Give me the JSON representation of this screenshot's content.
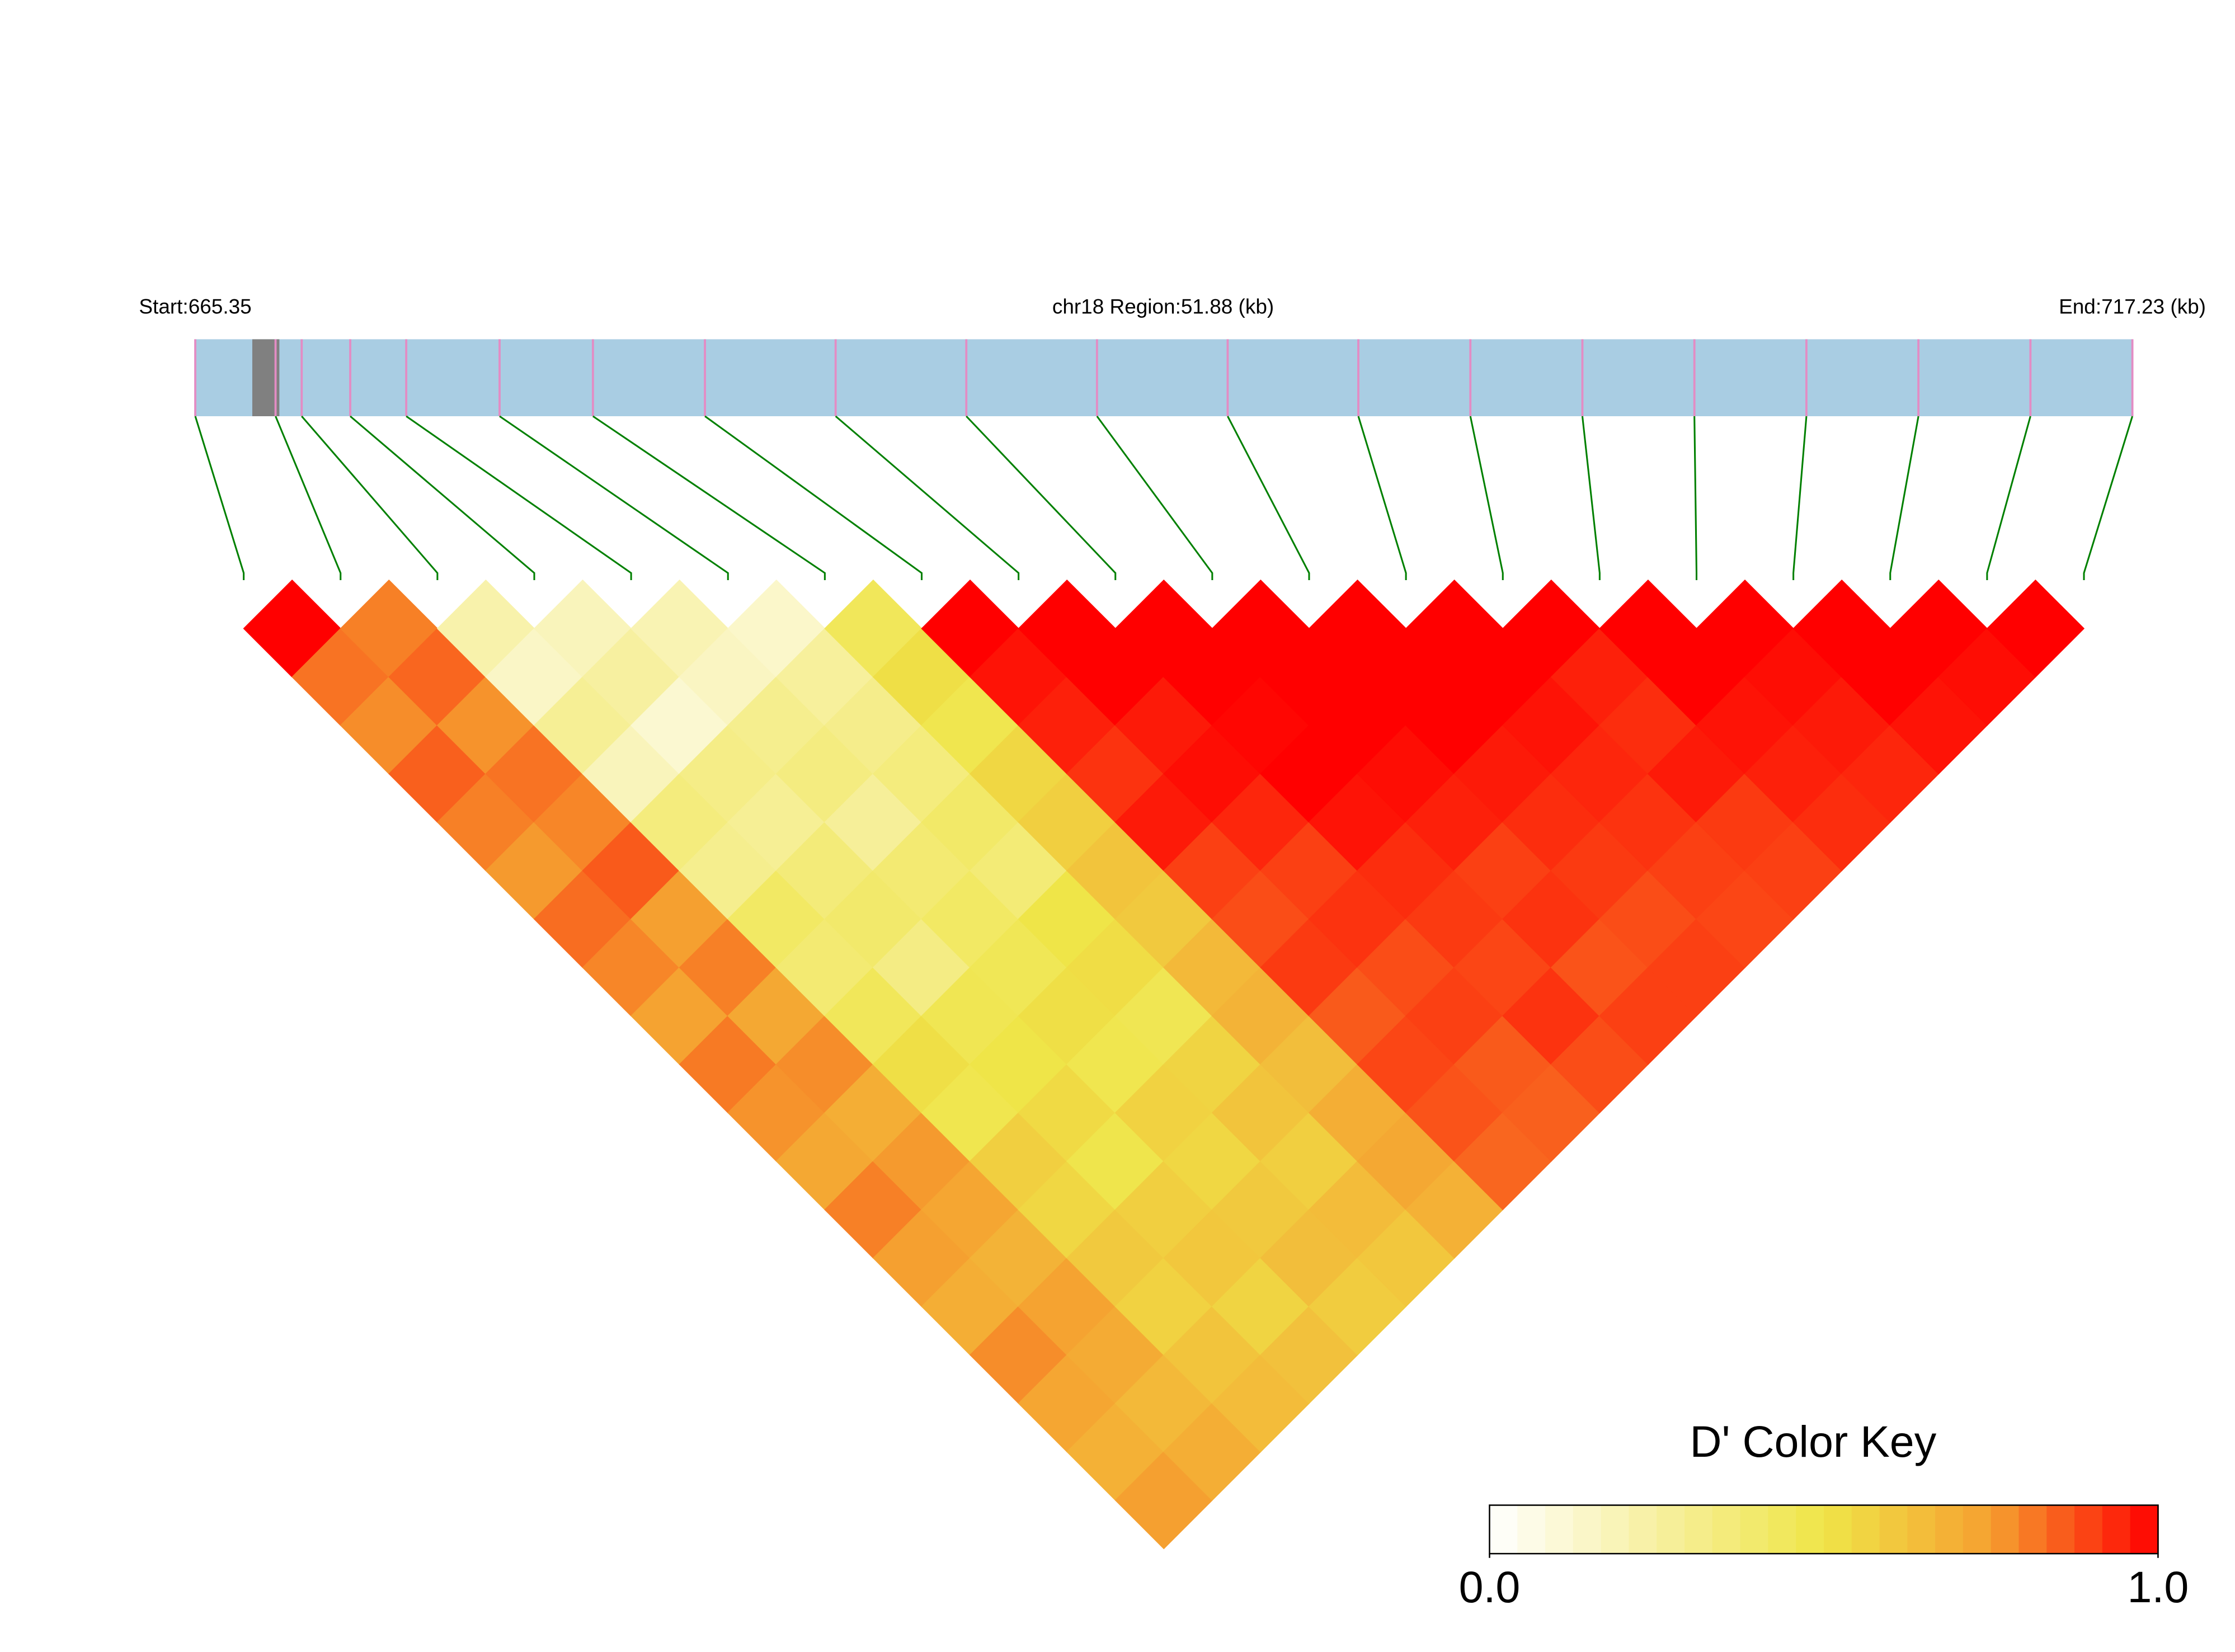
{
  "chart_data": {
    "type": "ld_heatmap",
    "start_label": "Start:665.35",
    "title": "chr18 Region:51.88 (kb)",
    "end_label": "End:717.23 (kb)",
    "xlim": [
      665.35,
      717.23
    ],
    "positions": [
      665.35,
      667.5,
      668.2,
      669.5,
      671.0,
      673.5,
      676.0,
      679.0,
      682.5,
      686.0,
      689.5,
      693.0,
      696.5,
      699.5,
      702.5,
      705.5,
      708.5,
      711.5,
      714.5,
      717.23
    ],
    "track_color": "#a9cde3",
    "snp_color": "#e38cc4",
    "link_color": "#008000",
    "dprime": [
      [
        1.0,
        0.82,
        0.78,
        0.85,
        0.8,
        0.76,
        0.83,
        0.79,
        0.74,
        0.81,
        0.77,
        0.72,
        0.8,
        0.75,
        0.7,
        0.78,
        0.73,
        0.69,
        0.75
      ],
      [
        0.8,
        0.84,
        0.77,
        0.82,
        0.79,
        0.86,
        0.75,
        0.8,
        0.72,
        0.78,
        0.7,
        0.76,
        0.73,
        0.68,
        0.74,
        0.71,
        0.66,
        0.7
      ],
      [
        0.22,
        0.15,
        0.28,
        0.18,
        0.35,
        0.3,
        0.42,
        0.38,
        0.45,
        0.52,
        0.48,
        0.58,
        0.55,
        0.6,
        0.57,
        0.62,
        0.65
      ],
      [
        0.18,
        0.25,
        0.12,
        0.32,
        0.28,
        0.36,
        0.4,
        0.33,
        0.47,
        0.5,
        0.54,
        0.49,
        0.58,
        0.61,
        0.56,
        0.63
      ],
      [
        0.2,
        0.16,
        0.3,
        0.34,
        0.27,
        0.38,
        0.42,
        0.46,
        0.52,
        0.48,
        0.57,
        0.55,
        0.6,
        0.64,
        0.59
      ],
      [
        0.14,
        0.26,
        0.31,
        0.35,
        0.41,
        0.37,
        0.5,
        0.53,
        0.47,
        0.56,
        0.62,
        0.58,
        0.65,
        0.61
      ],
      [
        0.45,
        0.52,
        0.48,
        0.55,
        0.58,
        0.62,
        0.6,
        0.66,
        0.68,
        0.64,
        0.7,
        0.72,
        0.69
      ],
      [
        1.0,
        0.97,
        0.95,
        0.92,
        0.96,
        0.9,
        0.88,
        0.91,
        0.86,
        0.89,
        0.87,
        0.84
      ],
      [
        1.0,
        1.0,
        0.96,
        0.98,
        0.94,
        0.9,
        0.92,
        0.88,
        0.9,
        0.86,
        0.85
      ],
      [
        1.0,
        1.0,
        0.99,
        1.0,
        0.97,
        0.93,
        0.91,
        0.89,
        0.92,
        0.88
      ],
      [
        1.0,
        1.0,
        1.0,
        0.98,
        0.95,
        0.9,
        0.92,
        0.87,
        0.9
      ],
      [
        1.0,
        1.0,
        1.0,
        0.96,
        0.93,
        0.91,
        0.88,
        0.9
      ],
      [
        1.0,
        1.0,
        0.97,
        0.94,
        0.92,
        0.9,
        0.89
      ],
      [
        1.0,
        0.95,
        0.93,
        0.96,
        0.91,
        0.9
      ],
      [
        1.0,
        1.0,
        0.97,
        0.95,
        0.93
      ],
      [
        1.0,
        0.98,
        0.96,
        0.94
      ],
      [
        1.0,
        1.0,
        0.97
      ],
      [
        1.0,
        0.98
      ],
      [
        1.0
      ]
    ],
    "color_key": {
      "title": "D' Color Key",
      "lim": [
        0,
        1
      ],
      "ticks": [
        {
          "value": 0,
          "label": "0.0"
        },
        {
          "value": 1,
          "label": "1.0"
        }
      ],
      "colors": [
        "#ffffff",
        "#f7f0a0",
        "#efe548",
        "#f5a030",
        "#ff0000"
      ]
    }
  }
}
